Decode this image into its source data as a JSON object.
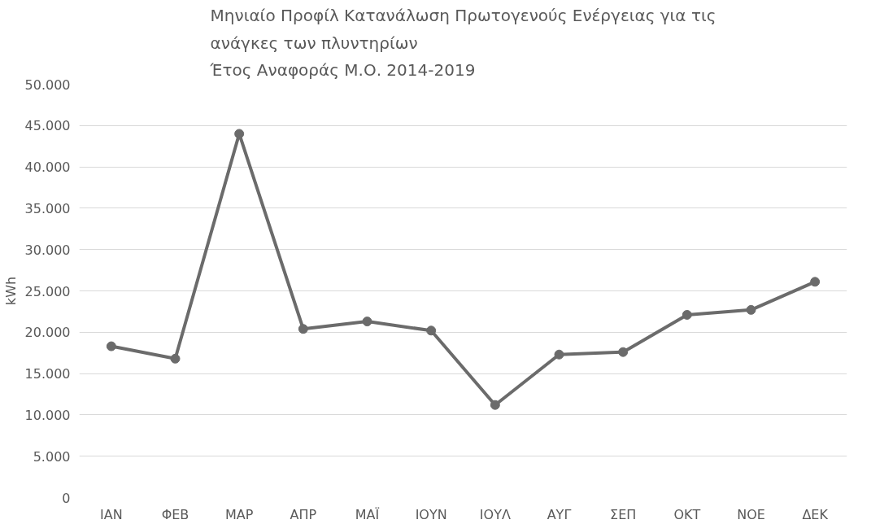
{
  "chart_data": {
    "type": "line",
    "title": "Μηνιαίο Προφίλ Κατανάλωση Πρωτογενούς Ενέργειας για τις\nανάγκες των πλυντηρίων\nΈτος Αναφοράς Μ.Ο. 2014-2019",
    "ylabel": "kWh",
    "categories": [
      "ΙΑΝ",
      "ΦΕΒ",
      "ΜΑΡ",
      "ΑΠΡ",
      "ΜΑΪ",
      "ΙΟΥΝ",
      "ΙΟΥΛ",
      "ΑΥΓ",
      "ΣΕΠ",
      "ΟΚΤ",
      "ΝΟΕ",
      "ΔΕΚ"
    ],
    "series": [
      {
        "color": "#6b6b6b",
        "values": [
          18300,
          16800,
          44000,
          20400,
          21300,
          20200,
          11200,
          17300,
          17600,
          22100,
          22700,
          26100
        ]
      }
    ],
    "ylim": [
      0,
      50000
    ],
    "yticks": [
      {
        "value": 0,
        "label": "0"
      },
      {
        "value": 5000,
        "label": "5.000"
      },
      {
        "value": 10000,
        "label": "10.000"
      },
      {
        "value": 15000,
        "label": "15.000"
      },
      {
        "value": 20000,
        "label": "20.000"
      },
      {
        "value": 25000,
        "label": "25.000"
      },
      {
        "value": 30000,
        "label": "30.000"
      },
      {
        "value": 35000,
        "label": "35.000"
      },
      {
        "value": 40000,
        "label": "40.000"
      },
      {
        "value": 45000,
        "label": "45.000"
      },
      {
        "value": 50000,
        "label": "50.000"
      }
    ],
    "grid": "y",
    "marker": "circle",
    "line_style": "solid"
  }
}
